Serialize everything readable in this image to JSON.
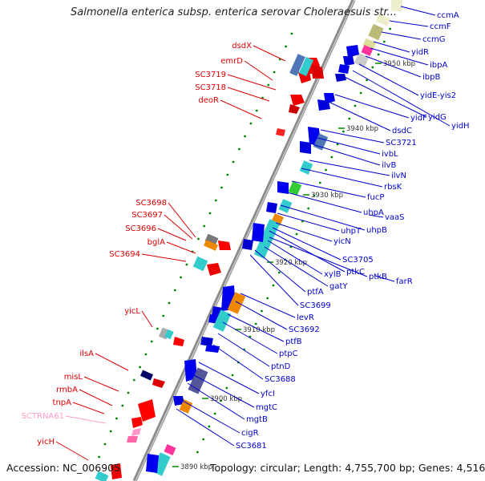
{
  "title": "Salmonella enterica subsp. enterica serovar Choleraesuis str...",
  "footer": {
    "accession": "Accession: NC_006905",
    "topology": "Topology: circular; Length: 4,755,700 bp; Genes: 4,516"
  },
  "colors": {
    "backbone": "#909090",
    "reverse_label": "#dd0000",
    "forward_label": "#0000cc",
    "rna_label": "#ff99cc",
    "tick_mark": "#008800"
  },
  "ticks": [
    "3950 kbp",
    "3940 kbp",
    "3930 kbp",
    "3920 kbp",
    "3910 kbp",
    "3900 kbp",
    "3890 kbp"
  ],
  "reverse_labels": [
    "dsdX",
    "emrD",
    "SC3719",
    "SC3718",
    "deoR",
    "SC3698",
    "SC3697",
    "SC3696",
    "bglA",
    "SC3694",
    "yicL",
    "ilsA",
    "misL",
    "rmbA",
    "tnpA",
    "SCTRNA61",
    "yicH"
  ],
  "forward_labels": [
    "ccmA",
    "ccmF",
    "ccmG",
    "yidR",
    "ibpA",
    "ibpB",
    "yidE-yis2",
    "yidH",
    "yidG",
    "yidF",
    "dsdC",
    "SC3721",
    "ivbL",
    "ilvB",
    "ilvN",
    "rbsK",
    "fucP",
    "uhpA",
    "vaaS",
    "uhpB",
    "uhpT",
    "yicN",
    "SC3705",
    "ptkC",
    "ptkB",
    "farR",
    "xylB",
    "gatY",
    "ptfA",
    "SC3699",
    "levR",
    "SC3692",
    "ptfB",
    "ptpC",
    "ptnD",
    "SC3688",
    "yfcI",
    "mgtC",
    "mgtB",
    "cigR",
    "SC3681"
  ]
}
